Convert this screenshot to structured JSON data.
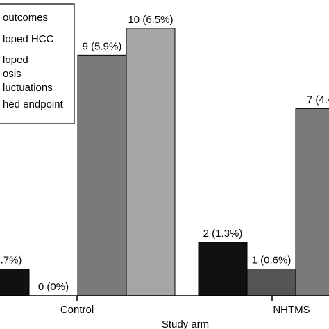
{
  "chart_data": {
    "type": "bar",
    "title": "",
    "xlabel": "Study arm",
    "ylabel": "",
    "categories": [
      "Control",
      "NHTMS"
    ],
    "ylim": [
      0,
      10.8
    ],
    "grid": false,
    "legend_position": "top-left",
    "legend_title": "outcomes",
    "series": [
      {
        "name": "loped HCC",
        "color": "#111111",
        "values": [
          1,
          2
        ],
        "labels": [
          ".7%)",
          "2 (1.3%)"
        ]
      },
      {
        "name": "loped",
        "color": "#555555",
        "values": [
          0,
          1
        ],
        "labels": [
          "0 (0%)",
          "1 (0.6%)"
        ]
      },
      {
        "name": "osis",
        "color": "#7a7a7a",
        "values": [
          9,
          7
        ],
        "labels": [
          "9 (5.9%)",
          "7 (4.4"
        ]
      },
      {
        "name": "luctuations",
        "color": "#a6a6a6",
        "values": [
          10,
          null
        ],
        "labels": [
          "10 (6.5%)",
          ""
        ]
      }
    ],
    "legend_entries": [
      "loped HCC",
      "loped",
      "osis",
      "luctuations",
      "hed endpoint"
    ]
  }
}
